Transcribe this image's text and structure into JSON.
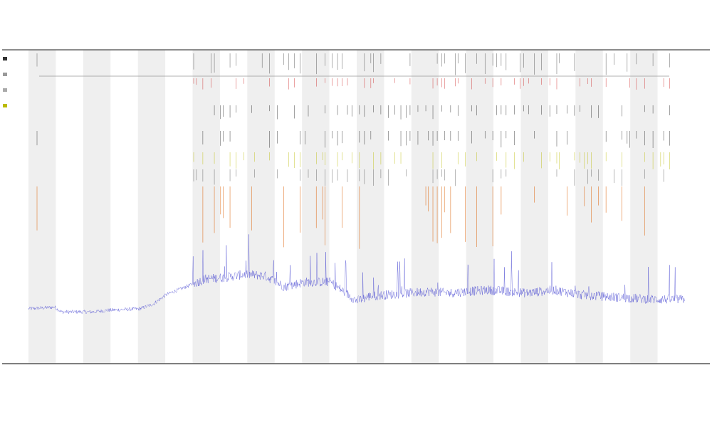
{
  "chart_data": {
    "type": "line",
    "title": "",
    "subtitle_1": "",
    "subtitle_2": "",
    "xlabel": "",
    "ylabel": "",
    "grid": false,
    "legend": {
      "placement": "top-left",
      "entries": []
    },
    "n_bands": 24,
    "x_tick_count": 185,
    "series": [
      {
        "name": "",
        "color": "#3333cc",
        "profile": [
          [
            0,
            0.175
          ],
          [
            0.04,
            0.18
          ],
          [
            0.05,
            0.165
          ],
          [
            0.1,
            0.165
          ],
          [
            0.12,
            0.17
          ],
          [
            0.17,
            0.175
          ],
          [
            0.19,
            0.19
          ],
          [
            0.21,
            0.22
          ],
          [
            0.24,
            0.245
          ],
          [
            0.27,
            0.27
          ],
          [
            0.3,
            0.275
          ],
          [
            0.33,
            0.285
          ],
          [
            0.36,
            0.28
          ],
          [
            0.39,
            0.245
          ],
          [
            0.42,
            0.26
          ],
          [
            0.46,
            0.26
          ],
          [
            0.5,
            0.2
          ],
          [
            0.52,
            0.215
          ],
          [
            0.55,
            0.22
          ],
          [
            0.58,
            0.225
          ],
          [
            0.61,
            0.23
          ],
          [
            0.64,
            0.225
          ],
          [
            0.67,
            0.23
          ],
          [
            0.7,
            0.235
          ],
          [
            0.73,
            0.23
          ],
          [
            0.76,
            0.225
          ],
          [
            0.8,
            0.235
          ],
          [
            0.84,
            0.22
          ],
          [
            0.87,
            0.215
          ],
          [
            0.91,
            0.21
          ],
          [
            0.95,
            0.205
          ],
          [
            1.0,
            0.205
          ]
        ]
      }
    ],
    "marker_rows": [
      {
        "name": "",
        "color": "#444444"
      },
      {
        "name": "",
        "color": "#cc2222"
      },
      {
        "name": "",
        "color": "#222222"
      },
      {
        "name": "",
        "color": "#222222"
      },
      {
        "name": "",
        "color": "#bbbb00"
      },
      {
        "name": "",
        "color": "#555555"
      },
      {
        "name": "",
        "color": "#e07020"
      }
    ]
  }
}
